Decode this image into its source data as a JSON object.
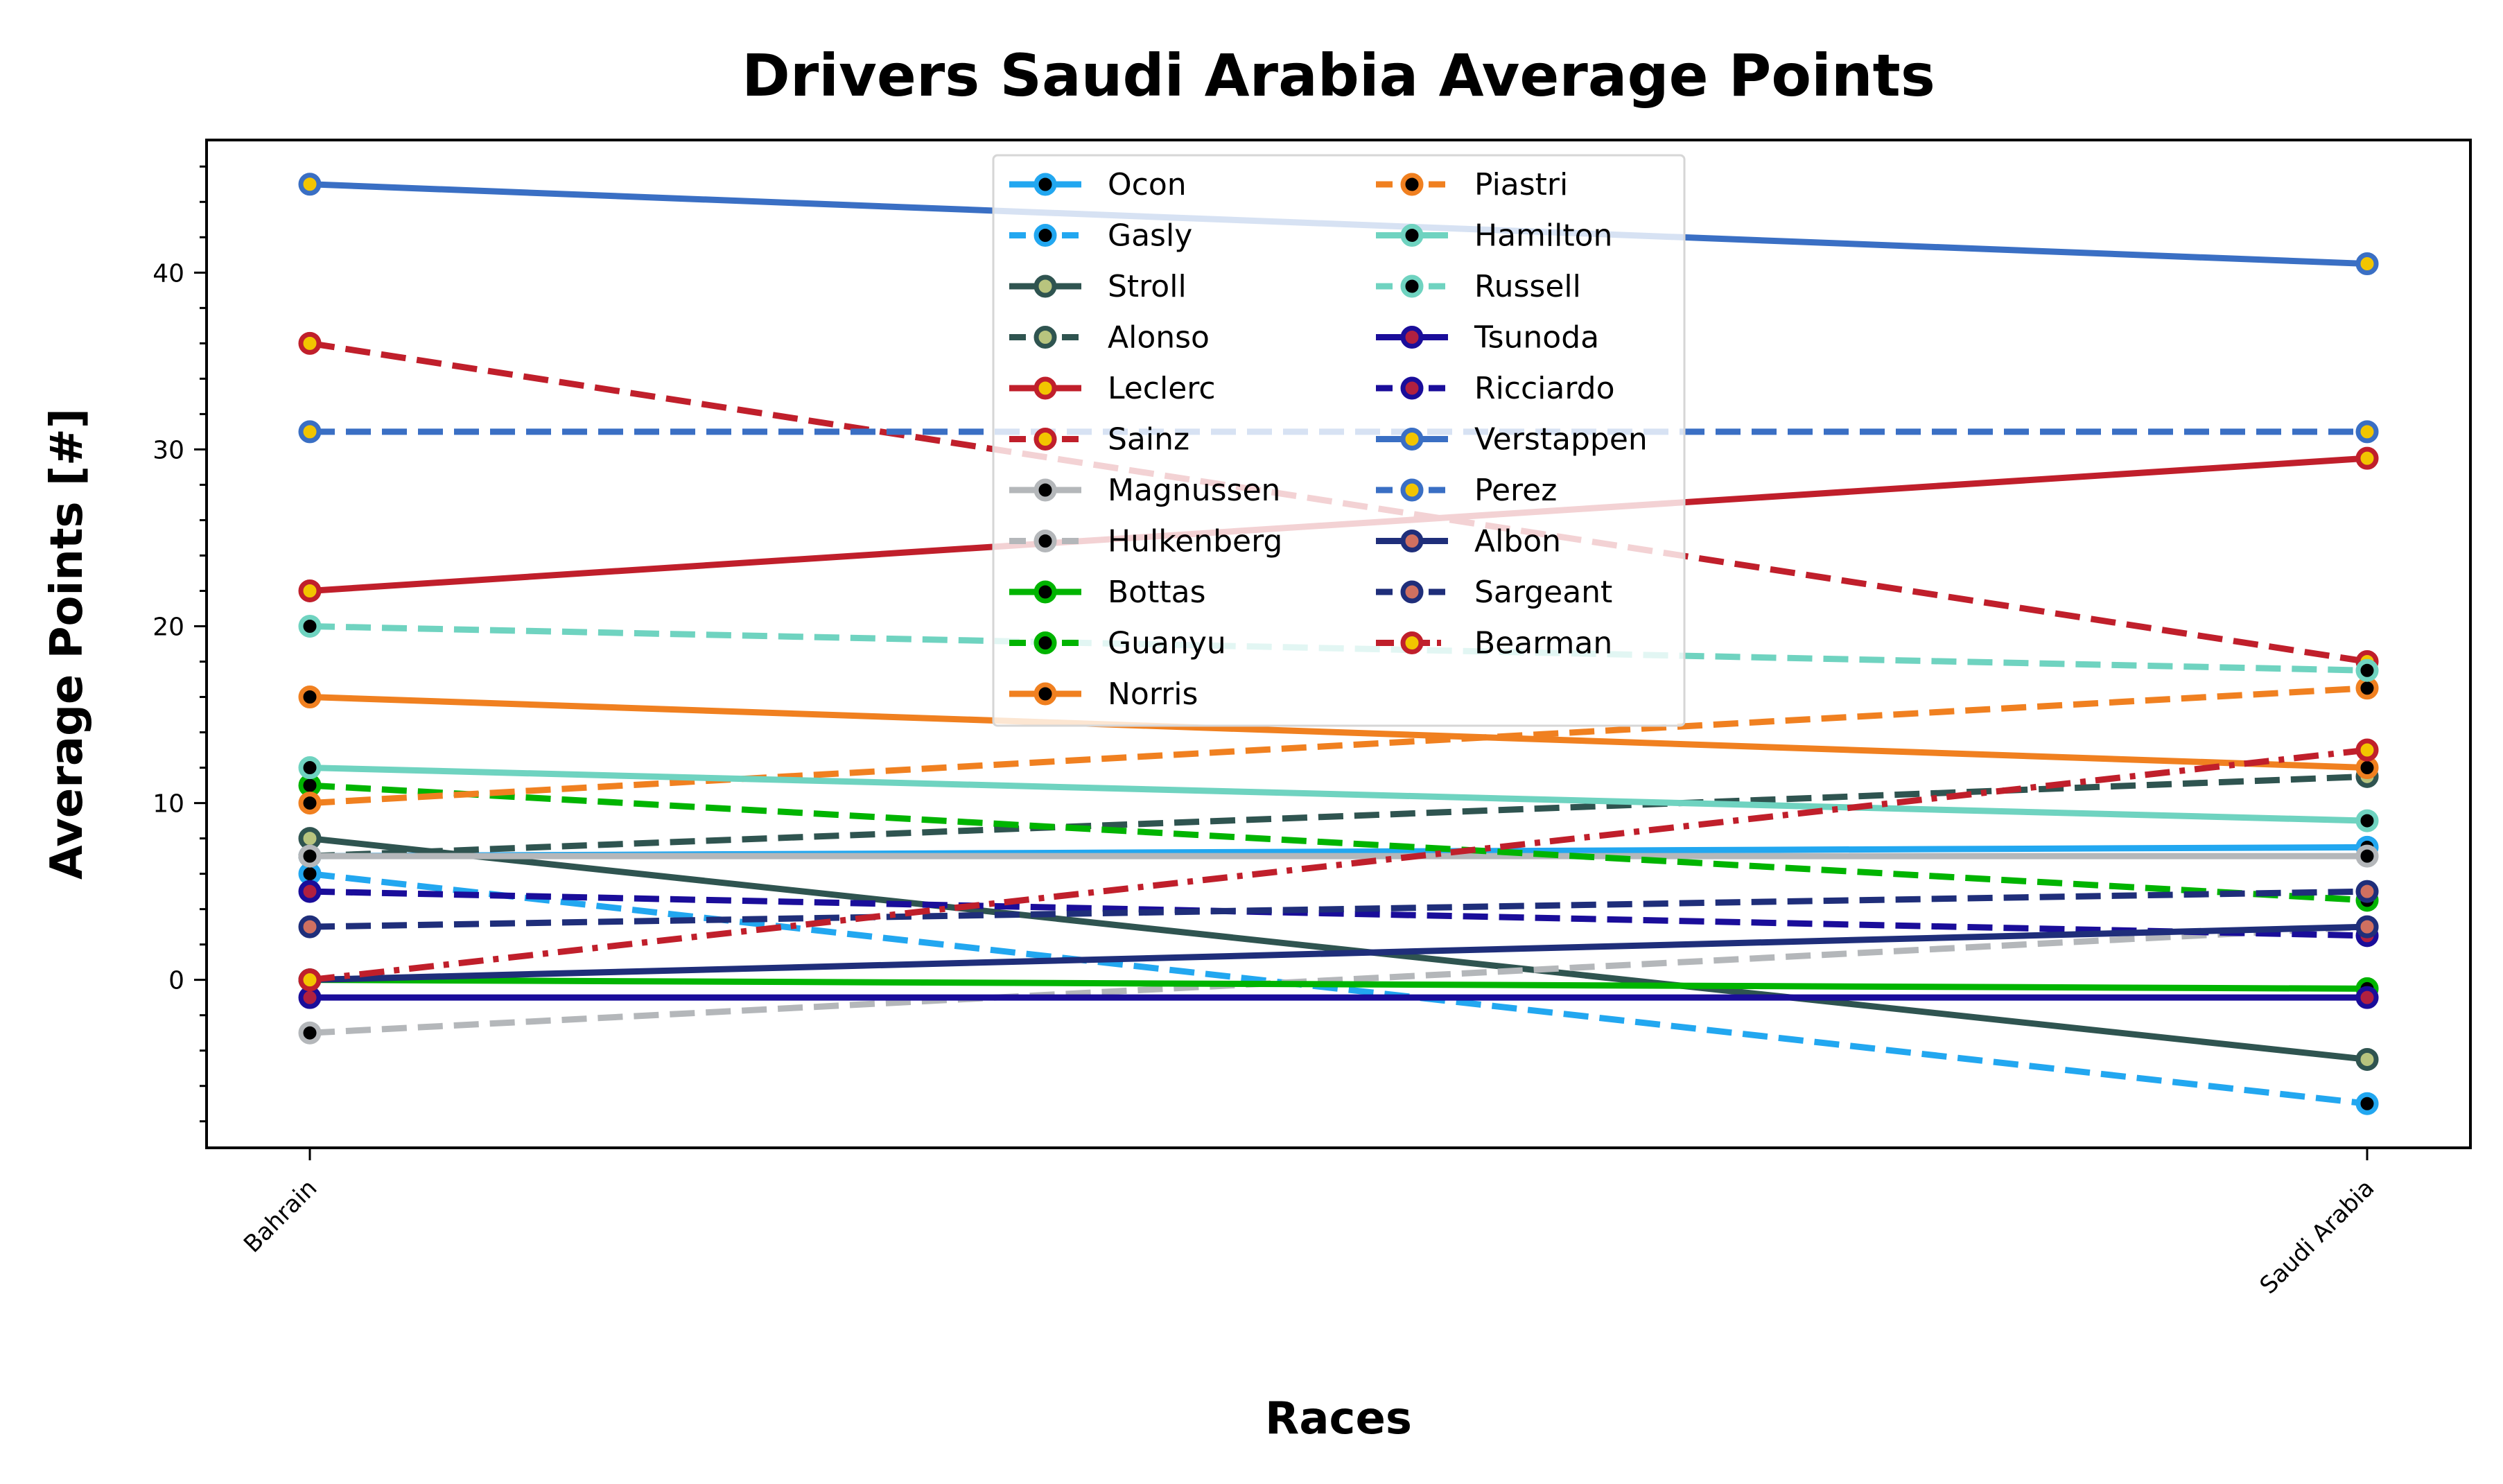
{
  "chart_data": {
    "type": "line",
    "title": "Drivers Saudi Arabia Average Points",
    "xlabel": "Races",
    "ylabel": "Average Points [#]",
    "categories": [
      "Bahrain",
      "Saudi Arabia"
    ],
    "ylim": [
      -9.5,
      47.5
    ],
    "yticks": [
      0,
      10,
      20,
      30,
      40
    ],
    "grid": false,
    "legend_position": "top-center",
    "legend_columns": 2,
    "series": [
      {
        "name": "Ocon",
        "values": [
          7,
          7.5
        ],
        "color": "#22a7f0",
        "dash": "solid",
        "marker_fill": "#000000"
      },
      {
        "name": "Gasly",
        "values": [
          6,
          -7
        ],
        "color": "#22a7f0",
        "dash": "dashed",
        "marker_fill": "#000000"
      },
      {
        "name": "Stroll",
        "values": [
          8,
          -4.5
        ],
        "color": "#2f5450",
        "dash": "solid",
        "marker_fill": "#b8c47e"
      },
      {
        "name": "Alonso",
        "values": [
          7,
          11.5
        ],
        "color": "#2f5450",
        "dash": "dashed",
        "marker_fill": "#b8c47e"
      },
      {
        "name": "Leclerc",
        "values": [
          22,
          29.5
        ],
        "color": "#c01f2b",
        "dash": "solid",
        "marker_fill": "#f2c500"
      },
      {
        "name": "Sainz",
        "values": [
          36,
          18
        ],
        "color": "#c01f2b",
        "dash": "dashed",
        "marker_fill": "#f2c500"
      },
      {
        "name": "Magnussen",
        "values": [
          7,
          7
        ],
        "color": "#b4b7ba",
        "dash": "solid",
        "marker_fill": "#000000"
      },
      {
        "name": "Hulkenberg",
        "values": [
          -3,
          3
        ],
        "color": "#b4b7ba",
        "dash": "dashed",
        "marker_fill": "#000000"
      },
      {
        "name": "Bottas",
        "values": [
          0,
          -0.5
        ],
        "color": "#00b400",
        "dash": "solid",
        "marker_fill": "#000000"
      },
      {
        "name": "Guanyu",
        "values": [
          11,
          4.5
        ],
        "color": "#00b400",
        "dash": "dashed",
        "marker_fill": "#000000"
      },
      {
        "name": "Norris",
        "values": [
          16,
          12
        ],
        "color": "#f08020",
        "dash": "solid",
        "marker_fill": "#000000"
      },
      {
        "name": "Piastri",
        "values": [
          10,
          16.5
        ],
        "color": "#f08020",
        "dash": "dashed",
        "marker_fill": "#000000"
      },
      {
        "name": "Hamilton",
        "values": [
          12,
          9
        ],
        "color": "#6fd3c0",
        "dash": "solid",
        "marker_fill": "#000000"
      },
      {
        "name": "Russell",
        "values": [
          20,
          17.5
        ],
        "color": "#6fd3c0",
        "dash": "dashed",
        "marker_fill": "#000000"
      },
      {
        "name": "Tsunoda",
        "values": [
          -1,
          -1
        ],
        "color": "#1a0d9a",
        "dash": "solid",
        "marker_fill": "#b02040"
      },
      {
        "name": "Ricciardo",
        "values": [
          5,
          2.5
        ],
        "color": "#1a0d9a",
        "dash": "dashed",
        "marker_fill": "#b02040"
      },
      {
        "name": "Verstappen",
        "values": [
          45,
          40.5
        ],
        "color": "#3a6fc4",
        "dash": "solid",
        "marker_fill": "#f2c500"
      },
      {
        "name": "Perez",
        "values": [
          31,
          31
        ],
        "color": "#3a6fc4",
        "dash": "dashed",
        "marker_fill": "#f2c500"
      },
      {
        "name": "Albon",
        "values": [
          0,
          3
        ],
        "color": "#1f2e7a",
        "dash": "solid",
        "marker_fill": "#d07060"
      },
      {
        "name": "Sargeant",
        "values": [
          3,
          5
        ],
        "color": "#1f2e7a",
        "dash": "dashed",
        "marker_fill": "#d07060"
      },
      {
        "name": "Bearman",
        "values": [
          0,
          13
        ],
        "color": "#c01f2b",
        "dash": "dashdot",
        "marker_fill": "#f2c500"
      }
    ]
  }
}
